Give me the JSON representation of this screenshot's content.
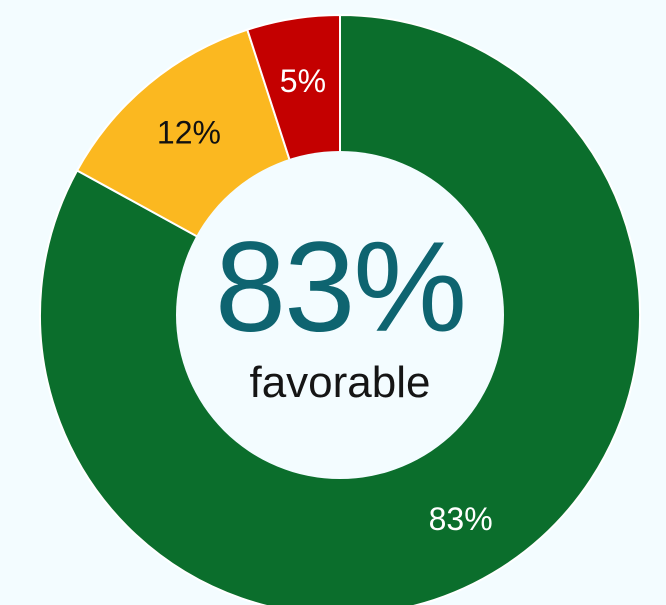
{
  "chart_data": {
    "type": "pie",
    "style": "donut",
    "series": [
      {
        "value": 83,
        "label": "83%",
        "color": "#0b6e2c",
        "label_color": "#ffffff"
      },
      {
        "value": 12,
        "label": "12%",
        "color": "#fbb820",
        "label_color": "#111111"
      },
      {
        "value": 5,
        "label": "5%",
        "color": "#c40000",
        "label_color": "#ffffff"
      }
    ],
    "center": {
      "value": "83%",
      "caption": "favorable"
    },
    "colors": {
      "background": "#f3fcff",
      "hole": "#f3fcff",
      "center_value": "#0e6470",
      "separator": "#ffffff"
    }
  }
}
